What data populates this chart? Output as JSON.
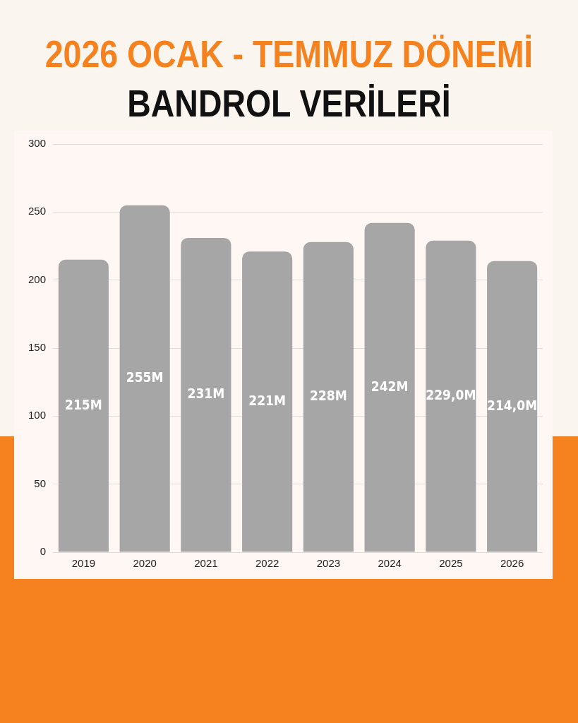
{
  "chart_data": {
    "type": "bar",
    "title": "2026 OCAK - TEMMUZ DÖNEMİ",
    "subtitle": "BANDROL VERİLERİ",
    "categories": [
      "2019",
      "2020",
      "2021",
      "2022",
      "2023",
      "2024",
      "2025",
      "2026"
    ],
    "values": [
      215,
      255,
      231,
      221,
      228,
      242,
      229,
      214
    ],
    "value_labels": [
      "215M",
      "255M",
      "231M",
      "221M",
      "228M",
      "242M",
      "229,0M",
      "214,0M"
    ],
    "color": "#a6a6a6",
    "ylim": [
      0,
      300
    ],
    "yticks": [
      0,
      50,
      100,
      150,
      200,
      250,
      300
    ],
    "grid": "y"
  }
}
